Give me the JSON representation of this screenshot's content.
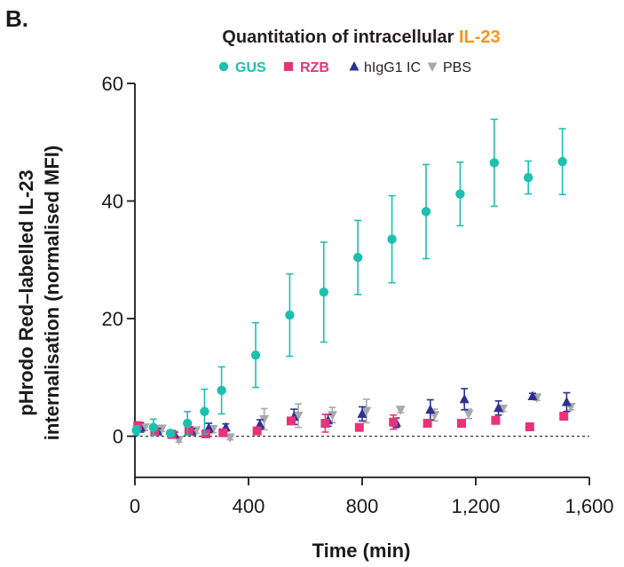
{
  "panel_label": "B.",
  "title": {
    "prefix": "Quantitation of intracellular ",
    "highlight": "IL-23"
  },
  "colors": {
    "GUS": "#1dbfb0",
    "RZB": "#e8337a",
    "hIgG1 IC": "#2e3192",
    "PBS": "#a7a9ac",
    "title_highlight": "#f7941d",
    "axis": "#1a1a1a"
  },
  "chart_data": {
    "type": "scatter",
    "title": "Quantitation of intracellular IL-23",
    "xlabel": "Time (min)",
    "ylabel_line1": "pHrodo Red–labelled IL-23",
    "ylabel_line2": "internalisation (normalised MFI)",
    "xlim": [
      0,
      1600
    ],
    "ylim": [
      -7,
      60
    ],
    "xticks": [
      0,
      400,
      800,
      1200,
      1600
    ],
    "xtick_labels": [
      "0",
      "400",
      "800",
      "1,200",
      "1,600"
    ],
    "yticks": [
      0,
      20,
      40,
      60
    ],
    "ytick_labels": [
      "0",
      "20",
      "40",
      "60"
    ],
    "reference_line": {
      "y": 0,
      "style": "dashed"
    },
    "legend_position": "top",
    "series": [
      {
        "name": "GUS",
        "marker": "circle",
        "points": [
          {
            "x": 5,
            "y": 1.0,
            "err": 0.8
          },
          {
            "x": 65,
            "y": 1.5,
            "err": 1.4
          },
          {
            "x": 125,
            "y": 0.5,
            "err": 0.5
          },
          {
            "x": 185,
            "y": 2.2,
            "err": 2.0
          },
          {
            "x": 245,
            "y": 4.2,
            "err": 3.8
          },
          {
            "x": 305,
            "y": 7.8,
            "err": 4.0
          },
          {
            "x": 425,
            "y": 13.8,
            "err": 5.5
          },
          {
            "x": 545,
            "y": 20.6,
            "err": 7.0
          },
          {
            "x": 665,
            "y": 24.5,
            "err": 8.5
          },
          {
            "x": 785,
            "y": 30.4,
            "err": 6.3
          },
          {
            "x": 905,
            "y": 33.5,
            "err": 7.4
          },
          {
            "x": 1025,
            "y": 38.2,
            "err": 8.0
          },
          {
            "x": 1145,
            "y": 41.2,
            "err": 5.4
          },
          {
            "x": 1265,
            "y": 46.5,
            "err": 7.4
          },
          {
            "x": 1385,
            "y": 44.0,
            "err": 2.8
          },
          {
            "x": 1505,
            "y": 46.7,
            "err": 5.6
          }
        ]
      },
      {
        "name": "RZB",
        "marker": "square",
        "points": [
          {
            "x": 10,
            "y": 1.8,
            "err": 0.4
          },
          {
            "x": 70,
            "y": 0.8,
            "err": 0.4
          },
          {
            "x": 130,
            "y": 0.3,
            "err": 0.3
          },
          {
            "x": 190,
            "y": 1.0,
            "err": 0.4
          },
          {
            "x": 250,
            "y": 0.4,
            "err": 0.4
          },
          {
            "x": 310,
            "y": 0.6,
            "err": 0.4
          },
          {
            "x": 430,
            "y": 0.9,
            "err": 0.5
          },
          {
            "x": 550,
            "y": 2.6,
            "err": 0.5
          },
          {
            "x": 670,
            "y": 2.2,
            "err": 1.5
          },
          {
            "x": 790,
            "y": 1.5,
            "err": 0.5
          },
          {
            "x": 910,
            "y": 2.4,
            "err": 1.2
          },
          {
            "x": 1030,
            "y": 2.2,
            "err": 0.5
          },
          {
            "x": 1150,
            "y": 2.2,
            "err": 0.5
          },
          {
            "x": 1270,
            "y": 2.7,
            "err": 0.6
          },
          {
            "x": 1390,
            "y": 1.6,
            "err": 0.4
          },
          {
            "x": 1510,
            "y": 3.4,
            "err": 0.6
          }
        ]
      },
      {
        "name": "hIgG1 IC",
        "marker": "triangle-up",
        "points": [
          {
            "x": 20,
            "y": 1.5,
            "err": 0.8
          },
          {
            "x": 80,
            "y": 0.8,
            "err": 0.5
          },
          {
            "x": 140,
            "y": 0.3,
            "err": 0.4
          },
          {
            "x": 200,
            "y": 0.8,
            "err": 0.5
          },
          {
            "x": 260,
            "y": 1.4,
            "err": 0.8
          },
          {
            "x": 320,
            "y": 1.5,
            "err": 0.6
          },
          {
            "x": 440,
            "y": 2.0,
            "err": 0.8
          },
          {
            "x": 560,
            "y": 3.3,
            "err": 1.3
          },
          {
            "x": 680,
            "y": 2.7,
            "err": 1.0
          },
          {
            "x": 800,
            "y": 3.8,
            "err": 1.2
          },
          {
            "x": 920,
            "y": 2.3,
            "err": 0.8
          },
          {
            "x": 1040,
            "y": 4.5,
            "err": 1.7
          },
          {
            "x": 1160,
            "y": 6.3,
            "err": 1.8
          },
          {
            "x": 1280,
            "y": 4.8,
            "err": 1.2
          },
          {
            "x": 1400,
            "y": 6.8,
            "err": 0.5
          },
          {
            "x": 1520,
            "y": 5.8,
            "err": 1.6
          }
        ]
      },
      {
        "name": "PBS",
        "marker": "triangle-down",
        "points": [
          {
            "x": 35,
            "y": 1.5,
            "err": 0.5
          },
          {
            "x": 95,
            "y": 1.3,
            "err": 0.5
          },
          {
            "x": 155,
            "y": -0.6,
            "err": 0.4
          },
          {
            "x": 215,
            "y": 1.0,
            "err": 0.5
          },
          {
            "x": 275,
            "y": 1.2,
            "err": 0.6
          },
          {
            "x": 335,
            "y": -0.2,
            "err": 0.4
          },
          {
            "x": 455,
            "y": 2.9,
            "err": 1.8
          },
          {
            "x": 575,
            "y": 3.5,
            "err": 2.0
          },
          {
            "x": 695,
            "y": 3.6,
            "err": 1.3
          },
          {
            "x": 815,
            "y": 4.3,
            "err": 2.0
          },
          {
            "x": 935,
            "y": 4.5,
            "err": 0.5
          },
          {
            "x": 1055,
            "y": 3.6,
            "err": 1.0
          },
          {
            "x": 1175,
            "y": 3.8,
            "err": 0.8
          },
          {
            "x": 1295,
            "y": 4.7,
            "err": 0.5
          },
          {
            "x": 1415,
            "y": 6.6,
            "err": 0.5
          },
          {
            "x": 1535,
            "y": 5.0,
            "err": 0.5
          }
        ]
      }
    ]
  }
}
